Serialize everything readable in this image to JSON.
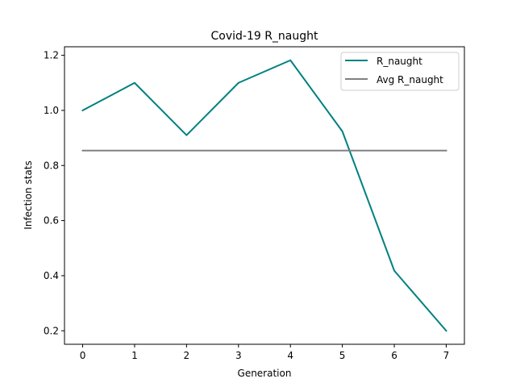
{
  "chart_data": {
    "type": "line",
    "title": "Covid-19 R_naught",
    "xlabel": "Generation",
    "ylabel": "Infection stats",
    "x": [
      0,
      1,
      2,
      3,
      4,
      5,
      6,
      7
    ],
    "series": [
      {
        "name": "R_naught",
        "color": "#008080",
        "values": [
          1.0,
          1.1,
          0.91,
          1.1,
          1.182,
          0.924,
          0.418,
          0.2
        ]
      },
      {
        "name": "Avg R_naught",
        "color": "#808080",
        "values": [
          0.854,
          0.854,
          0.854,
          0.854,
          0.854,
          0.854,
          0.854,
          0.854
        ]
      }
    ],
    "xlim": [
      -0.35,
      7.35
    ],
    "ylim": [
      0.151,
      1.231
    ],
    "xticks": [
      0,
      1,
      2,
      3,
      4,
      5,
      6,
      7
    ],
    "xtick_labels": [
      "0",
      "1",
      "2",
      "3",
      "4",
      "5",
      "6",
      "7"
    ],
    "yticks": [
      0.2,
      0.4,
      0.6,
      0.8,
      1.0,
      1.2
    ],
    "ytick_labels": [
      "0.2",
      "0.4",
      "0.6",
      "0.8",
      "1.0",
      "1.2"
    ],
    "grid": false,
    "legend_position": "upper right"
  }
}
